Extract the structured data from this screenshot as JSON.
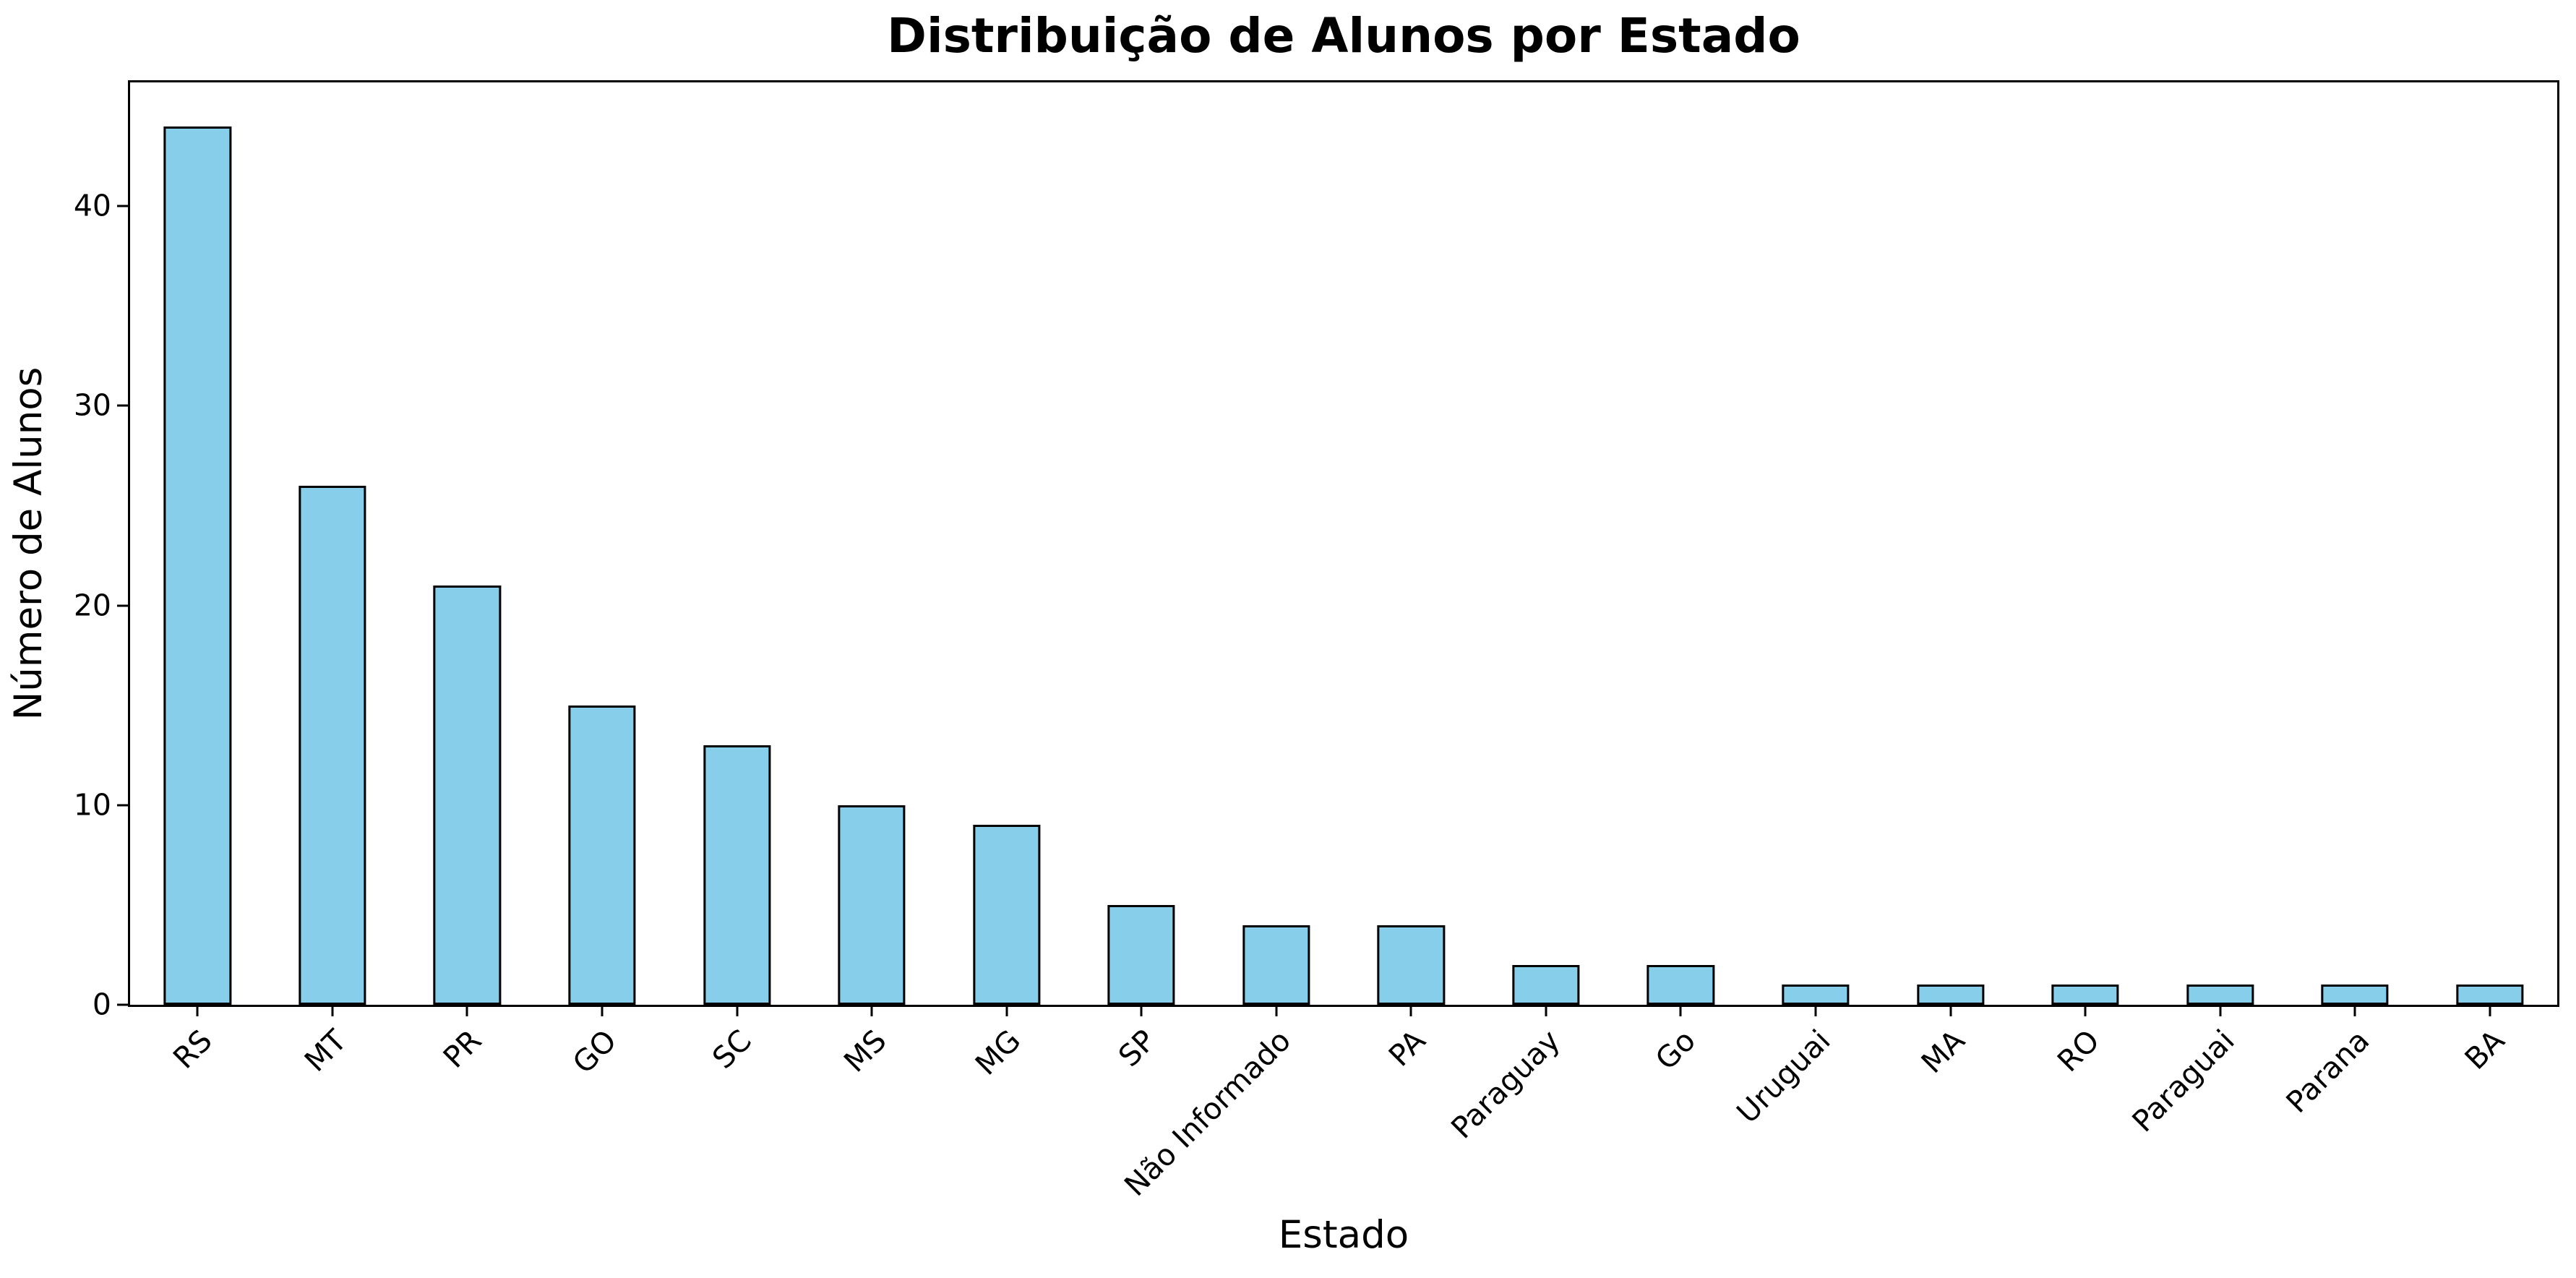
{
  "chart_data": {
    "type": "bar",
    "title": "Distribuição de Alunos por Estado",
    "xlabel": "Estado",
    "ylabel": "Número de Alunos",
    "categories": [
      "RS",
      "MT",
      "PR",
      "GO",
      "SC",
      "MS",
      "MG",
      "SP",
      "Não Informado",
      "PA",
      "Paraguay",
      "Go",
      "Uruguai",
      "MA",
      "RO",
      "Paraguai",
      "Parana",
      "BA"
    ],
    "values": [
      44,
      26,
      21,
      15,
      13,
      10,
      9,
      5,
      4,
      4,
      2,
      2,
      1,
      1,
      1,
      1,
      1,
      1
    ],
    "yticks": [
      0,
      10,
      20,
      30,
      40
    ],
    "ylim": [
      0,
      46.2
    ],
    "xtick_rotation_deg": 45,
    "grid": false,
    "legend": "none",
    "bar_color": "#87CEEB",
    "bar_edge_color": "#000000",
    "spine_color": "#000000",
    "background_color": "#FFFFFF",
    "text_color": "#000000"
  }
}
